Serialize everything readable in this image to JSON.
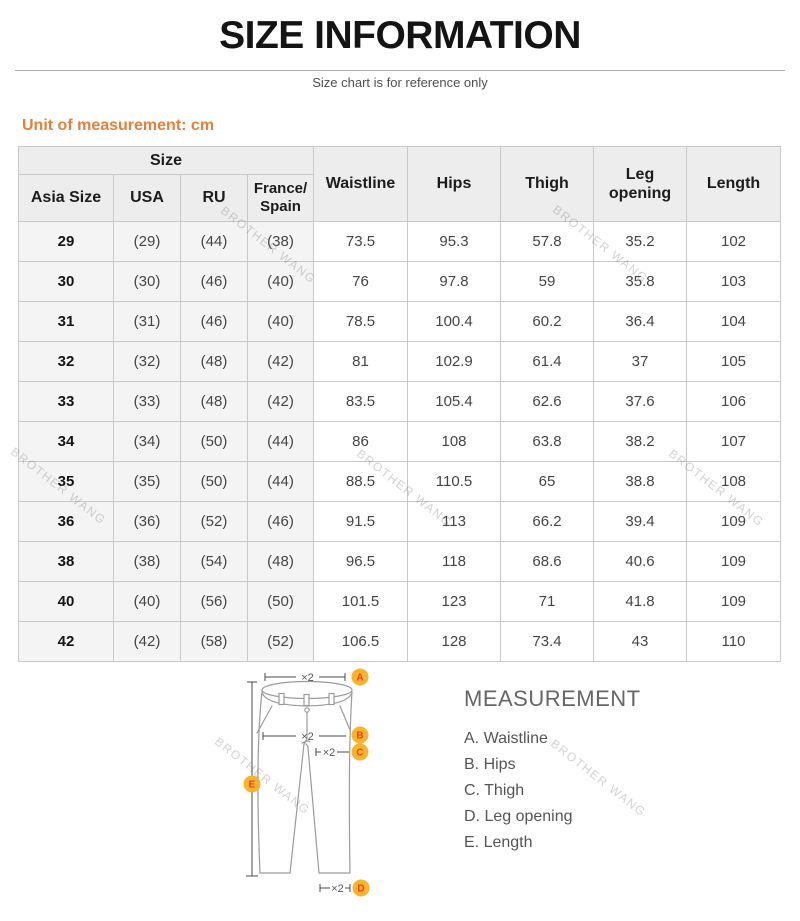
{
  "page": {
    "title": "SIZE INFORMATION",
    "subtitle": "Size chart is for reference only",
    "unit_label": "Unit of measurement: cm"
  },
  "table": {
    "size_group_header": "Size",
    "size_columns": [
      "Asia Size",
      "USA",
      "RU",
      "France/Spain"
    ],
    "measure_columns": [
      "Waistline",
      "Hips",
      "Thigh",
      "Leg opening",
      "Length"
    ],
    "rows": [
      [
        "29",
        "(29)",
        "(44)",
        "(38)",
        "73.5",
        "95.3",
        "57.8",
        "35.2",
        "102"
      ],
      [
        "30",
        "(30)",
        "(46)",
        "(40)",
        "76",
        "97.8",
        "59",
        "35.8",
        "103"
      ],
      [
        "31",
        "(31)",
        "(46)",
        "(40)",
        "78.5",
        "100.4",
        "60.2",
        "36.4",
        "104"
      ],
      [
        "32",
        "(32)",
        "(48)",
        "(42)",
        "81",
        "102.9",
        "61.4",
        "37",
        "105"
      ],
      [
        "33",
        "(33)",
        "(48)",
        "(42)",
        "83.5",
        "105.4",
        "62.6",
        "37.6",
        "106"
      ],
      [
        "34",
        "(34)",
        "(50)",
        "(44)",
        "86",
        "108",
        "63.8",
        "38.2",
        "107"
      ],
      [
        "35",
        "(35)",
        "(50)",
        "(44)",
        "88.5",
        "110.5",
        "65",
        "38.8",
        "108"
      ],
      [
        "36",
        "(36)",
        "(52)",
        "(46)",
        "91.5",
        "113",
        "66.2",
        "39.4",
        "109"
      ],
      [
        "38",
        "(38)",
        "(54)",
        "(48)",
        "96.5",
        "118",
        "68.6",
        "40.6",
        "109"
      ],
      [
        "40",
        "(40)",
        "(56)",
        "(50)",
        "101.5",
        "123",
        "71",
        "41.8",
        "109"
      ],
      [
        "42",
        "(42)",
        "(58)",
        "(52)",
        "106.5",
        "128",
        "73.4",
        "43",
        "110"
      ]
    ]
  },
  "diagram": {
    "times2_label": "×2",
    "marker_letters": [
      "A",
      "B",
      "C",
      "D",
      "E"
    ],
    "marker_fill": "#FAB42C",
    "marker_letter_color": "#E2442E"
  },
  "measurement": {
    "title": "MEASUREMENT",
    "items": [
      "A. Waistline",
      "B. Hips",
      "C. Thigh",
      "D. Leg opening",
      "E. Length"
    ]
  },
  "watermark": {
    "text": "BROTHER WANG"
  },
  "colors": {
    "accent_orange": "#E3813C",
    "header_bg": "#EDEDED",
    "size_col_bg": "#F4F4F4",
    "table_border": "#C9C9C9"
  }
}
